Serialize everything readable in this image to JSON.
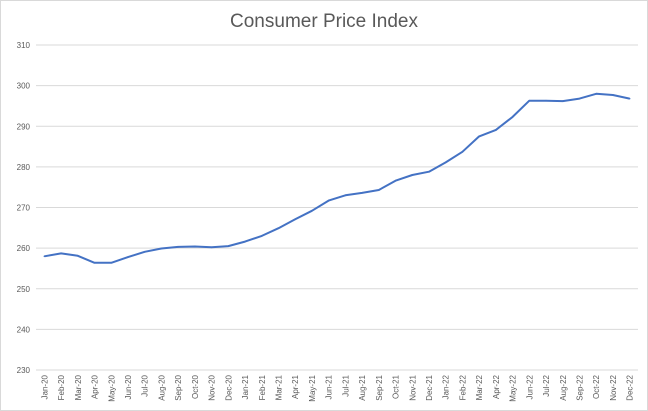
{
  "chart_data": {
    "type": "line",
    "title": "Consumer Price Index",
    "xlabel": "",
    "ylabel": "",
    "ylim": [
      230,
      310
    ],
    "yticks": [
      230,
      240,
      250,
      260,
      270,
      280,
      290,
      300,
      310
    ],
    "grid": true,
    "legend": "none",
    "line_color": "#4472C4",
    "categories": [
      "Jan-20",
      "Feb-20",
      "Mar-20",
      "Apr-20",
      "May-20",
      "Jun-20",
      "Jul-20",
      "Aug-20",
      "Sep-20",
      "Oct-20",
      "Nov-20",
      "Dec-20",
      "Jan-21",
      "Feb-21",
      "Mar-21",
      "Apr-21",
      "May-21",
      "Jun-21",
      "Jul-21",
      "Aug-21",
      "Sep-21",
      "Oct-21",
      "Nov-21",
      "Dec-21",
      "Jan-22",
      "Feb-22",
      "Mar-22",
      "Apr-22",
      "May-22",
      "Jun-22",
      "Jul-22",
      "Aug-22",
      "Sep-22",
      "Oct-22",
      "Nov-22",
      "Dec-22"
    ],
    "values": [
      258.0,
      258.7,
      258.1,
      256.4,
      256.4,
      257.8,
      259.1,
      259.9,
      260.3,
      260.4,
      260.2,
      260.5,
      261.6,
      263.0,
      264.9,
      267.1,
      269.2,
      271.7,
      273.0,
      273.6,
      274.3,
      276.6,
      278.0,
      278.8,
      281.1,
      283.7,
      287.5,
      289.1,
      292.3,
      296.3,
      296.3,
      296.2,
      296.8,
      298.0,
      297.7,
      296.8
    ]
  }
}
